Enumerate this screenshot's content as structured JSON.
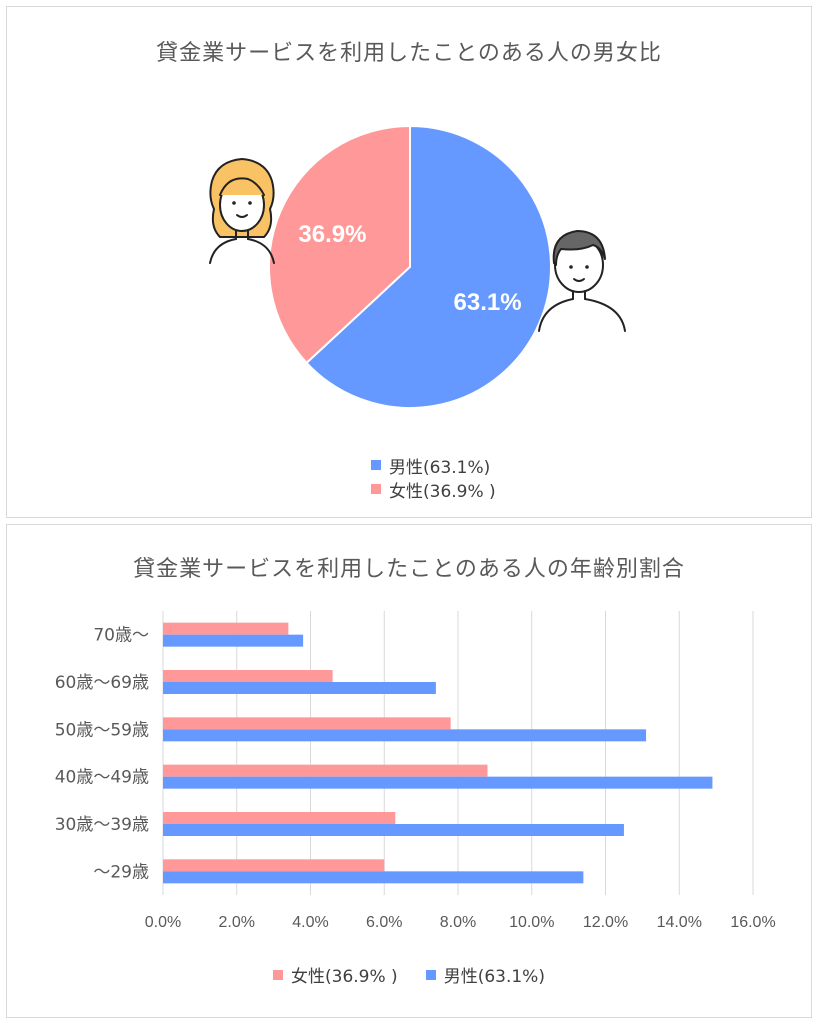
{
  "colors": {
    "male": "#6699ff",
    "female": "#ff9999",
    "grid": "#d9d9d9",
    "text": "#595959"
  },
  "chart_data": [
    {
      "type": "pie",
      "title": "貸金業サービスを利用したことのある人の男女比",
      "slices": [
        {
          "name": "男性(63.1%)",
          "value": 63.1,
          "label": "63.1%",
          "color": "#6699ff",
          "icon": "man-avatar-icon"
        },
        {
          "name": "女性(36.9% )",
          "value": 36.9,
          "label": "36.9%",
          "color": "#ff9999",
          "icon": "woman-avatar-icon"
        }
      ],
      "legend_position": "bottom"
    },
    {
      "type": "bar",
      "orientation": "horizontal",
      "title": "貸金業サービスを利用したことのある人の年齢別割合",
      "categories": [
        "70歳～",
        "60歳～69歳",
        "50歳～59歳",
        "40歳～49歳",
        "30歳～39歳",
        "～29歳"
      ],
      "series": [
        {
          "name": "女性(36.9% )",
          "color": "#ff9999",
          "values": [
            3.4,
            4.6,
            7.8,
            8.8,
            6.3,
            6.0
          ]
        },
        {
          "name": "男性(63.1%)",
          "color": "#6699ff",
          "values": [
            3.8,
            7.4,
            13.1,
            14.9,
            12.5,
            11.4
          ]
        }
      ],
      "xlim": [
        0,
        16
      ],
      "xticks": [
        "0.0%",
        "2.0%",
        "4.0%",
        "6.0%",
        "8.0%",
        "10.0%",
        "12.0%",
        "14.0%",
        "16.0%"
      ],
      "grid": true,
      "legend_position": "bottom"
    }
  ]
}
